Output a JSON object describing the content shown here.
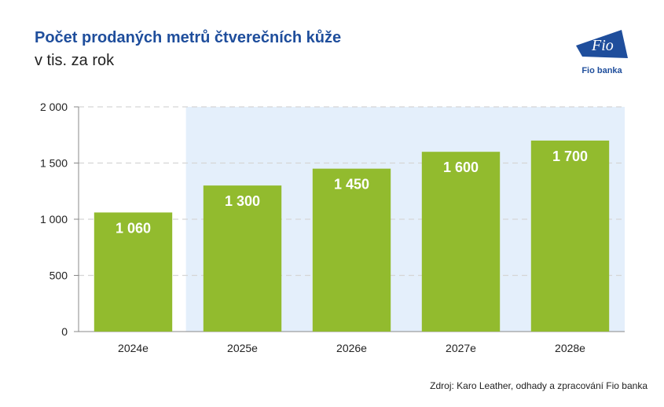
{
  "header": {
    "title": "Počet prodaných metrů čtverečních kůže",
    "subtitle": "v tis. za rok"
  },
  "logo": {
    "mark_text": "Fio",
    "name": "Fio banka"
  },
  "source": "Zdroj: Karo Leather, odhady a zpracování Fio banka",
  "colors": {
    "bar": "#92bb2e",
    "shade": "#e4effb",
    "grid": "#d5d5d5",
    "title": "#1f4e9c",
    "axis": "#222222"
  },
  "chart_data": {
    "type": "bar",
    "categories": [
      "2024e",
      "2025e",
      "2026e",
      "2027e",
      "2028e"
    ],
    "values": [
      1060,
      1300,
      1450,
      1600,
      1700
    ],
    "value_labels": [
      "1 060",
      "1 300",
      "1 450",
      "1 600",
      "1 700"
    ],
    "ylim": [
      0,
      2000
    ],
    "yticks": [
      0,
      500,
      1000,
      1500,
      2000
    ],
    "ytick_labels": [
      "0",
      "500",
      "1 000",
      "1 500",
      "2 000"
    ],
    "grid": true,
    "shaded_categories": [
      "2025e",
      "2026e",
      "2027e",
      "2028e"
    ]
  }
}
